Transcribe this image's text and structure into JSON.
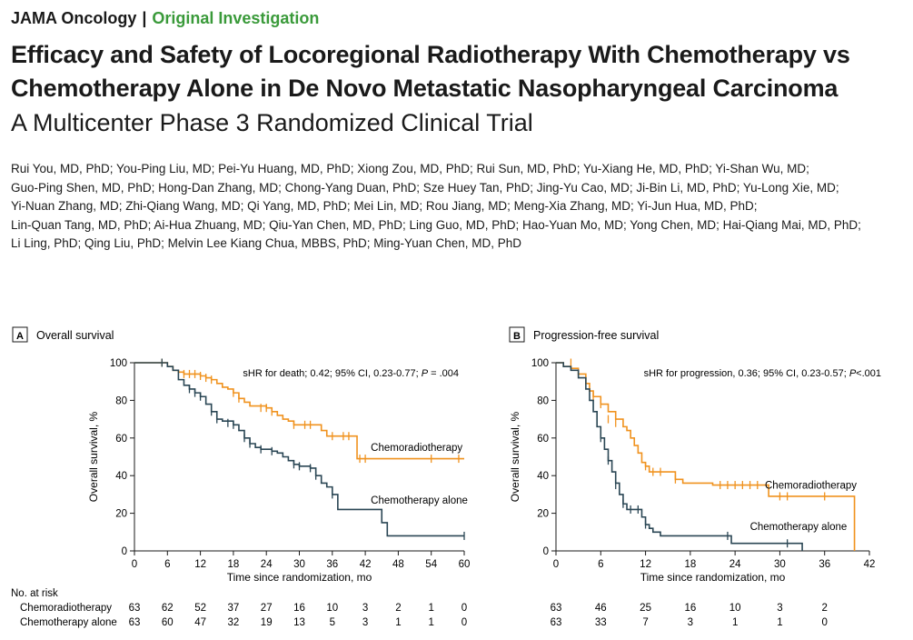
{
  "header": {
    "journal": "JAMA Oncology",
    "separator": "|",
    "category": "Original Investigation"
  },
  "title": {
    "line1": "Efficacy and Safety of Locoregional Radiotherapy With Chemotherapy vs",
    "line2": "Chemotherapy Alone in De Novo Metastatic Nasopharyngeal Carcinoma",
    "subtitle": "A Multicenter Phase 3 Randomized Clinical Trial"
  },
  "authors": [
    "Rui You, MD, PhD; You-Ping Liu, MD; Pei-Yu Huang, MD, PhD; Xiong Zou, MD, PhD; Rui Sun, MD, PhD; Yu-Xiang He, MD, PhD; Yi-Shan Wu, MD;",
    "Guo-Ping Shen, MD, PhD; Hong-Dan Zhang, MD; Chong-Yang Duan, PhD; Sze Huey Tan, PhD; Jing-Yu Cao, MD; Ji-Bin Li, MD, PhD; Yu-Long Xie, MD;",
    "Yi-Nuan Zhang, MD; Zhi-Qiang Wang, MD; Qi Yang, MD, PhD; Mei Lin, MD; Rou Jiang, MD; Meng-Xia Zhang, MD; Yi-Jun Hua, MD, PhD;",
    "Lin-Quan Tang, MD, PhD; Ai-Hua Zhuang, MD; Qiu-Yan Chen, MD, PhD; Ling Guo, MD, PhD; Hao-Yuan Mo, MD; Yong Chen, MD; Hai-Qiang Mai, MD, PhD;",
    "Li Ling, PhD; Qing Liu, PhD; Melvin Lee Kiang Chua, MBBS, PhD; Ming-Yuan Chen, MD, PhD"
  ],
  "colors": {
    "chemoradiotherapy": "#f0921e",
    "chemotherapy": "#2a4654",
    "category": "#3a9a3a"
  },
  "chart_data": [
    {
      "type": "line",
      "panel": "A",
      "title": "Overall survival",
      "xlabel": "Time since randomization, mo",
      "ylabel": "Overall survival, %",
      "xlim": [
        0,
        60
      ],
      "ylim": [
        0,
        100
      ],
      "xticks": [
        0,
        6,
        12,
        18,
        24,
        30,
        36,
        42,
        48,
        54,
        60
      ],
      "yticks": [
        0,
        20,
        40,
        60,
        80,
        100
      ],
      "annotation": {
        "prefix": "sHR for death; 0.42; 95% CI, 0.23-0.77; ",
        "p": "P",
        "suffix": " = .004"
      },
      "series": [
        {
          "name": "Chemoradiotherapy",
          "color": "#f0921e",
          "steps": [
            [
              0,
              100
            ],
            [
              5,
              100
            ],
            [
              6,
              98
            ],
            [
              7,
              96
            ],
            [
              8,
              95
            ],
            [
              9,
              94
            ],
            [
              12,
              93
            ],
            [
              13,
              92
            ],
            [
              14,
              91
            ],
            [
              15,
              89
            ],
            [
              16,
              87
            ],
            [
              17,
              86
            ],
            [
              18,
              84
            ],
            [
              19,
              81
            ],
            [
              20,
              79
            ],
            [
              21,
              77
            ],
            [
              24,
              76
            ],
            [
              25,
              74
            ],
            [
              26,
              72
            ],
            [
              27,
              70
            ],
            [
              28,
              69
            ],
            [
              29,
              67
            ],
            [
              33,
              67
            ],
            [
              34,
              64
            ],
            [
              35,
              61
            ],
            [
              40,
              61
            ],
            [
              40.5,
              49
            ],
            [
              58,
              49
            ],
            [
              60,
              49
            ]
          ],
          "censors": [
            [
              5,
              100
            ],
            [
              9,
              94
            ],
            [
              10,
              94
            ],
            [
              11,
              94
            ],
            [
              12,
              93
            ],
            [
              13,
              92
            ],
            [
              14,
              91
            ],
            [
              18,
              84
            ],
            [
              19,
              81
            ],
            [
              23,
              76
            ],
            [
              24,
              76
            ],
            [
              25,
              74
            ],
            [
              29,
              67
            ],
            [
              31,
              67
            ],
            [
              32,
              67
            ],
            [
              36,
              61
            ],
            [
              38,
              61
            ],
            [
              39,
              61
            ],
            [
              41,
              49
            ],
            [
              42,
              49
            ],
            [
              54,
              49
            ],
            [
              59,
              49
            ]
          ],
          "label_at": [
            43,
            55
          ]
        },
        {
          "name": "Chemotherapy alone",
          "color": "#2a4654",
          "steps": [
            [
              0,
              100
            ],
            [
              4,
              100
            ],
            [
              6,
              98
            ],
            [
              7,
              96
            ],
            [
              8,
              91
            ],
            [
              9,
              88
            ],
            [
              10,
              86
            ],
            [
              11,
              84
            ],
            [
              12,
              82
            ],
            [
              13,
              78
            ],
            [
              14,
              74
            ],
            [
              15,
              70
            ],
            [
              16,
              69
            ],
            [
              18,
              67
            ],
            [
              19,
              64
            ],
            [
              20,
              60
            ],
            [
              21,
              57
            ],
            [
              22,
              55
            ],
            [
              23,
              54
            ],
            [
              25,
              53
            ],
            [
              26,
              52
            ],
            [
              27,
              50
            ],
            [
              28,
              48
            ],
            [
              29,
              46
            ],
            [
              30,
              45
            ],
            [
              32,
              44
            ],
            [
              33,
              40
            ],
            [
              34,
              36
            ],
            [
              35,
              34
            ],
            [
              36,
              30
            ],
            [
              37,
              22
            ],
            [
              44,
              22
            ],
            [
              45,
              15
            ],
            [
              46,
              8
            ],
            [
              60,
              8
            ]
          ],
          "censors": [
            [
              5,
              100
            ],
            [
              10,
              86
            ],
            [
              11,
              84
            ],
            [
              12,
              82
            ],
            [
              14,
              74
            ],
            [
              15,
              70
            ],
            [
              17,
              68
            ],
            [
              18,
              67
            ],
            [
              20,
              60
            ],
            [
              21,
              57
            ],
            [
              23,
              54
            ],
            [
              25,
              53
            ],
            [
              29,
              46
            ],
            [
              30,
              45
            ],
            [
              32,
              44
            ],
            [
              33,
              40
            ],
            [
              36,
              30
            ],
            [
              60,
              8
            ]
          ],
          "label_at": [
            43,
            27
          ]
        }
      ],
      "at_risk": {
        "label": "No. at risk",
        "times": [
          0,
          6,
          12,
          18,
          24,
          30,
          36,
          42,
          48,
          54,
          60
        ],
        "rows": [
          {
            "name": "Chemoradiotherapy",
            "values": [
              63,
              62,
              52,
              37,
              27,
              16,
              10,
              3,
              2,
              1,
              0
            ]
          },
          {
            "name": "Chemotherapy alone",
            "values": [
              63,
              60,
              47,
              32,
              19,
              13,
              5,
              3,
              1,
              1,
              0
            ]
          }
        ]
      }
    },
    {
      "type": "line",
      "panel": "B",
      "title": "Progression-free survival",
      "xlabel": "Time since randomization, mo",
      "ylabel": "Overall survival, %",
      "xlim": [
        0,
        42
      ],
      "ylim": [
        0,
        100
      ],
      "xticks": [
        0,
        6,
        12,
        18,
        24,
        30,
        36,
        42
      ],
      "yticks": [
        0,
        20,
        40,
        60,
        80,
        100
      ],
      "annotation": {
        "prefix": "sHR for progression, 0.36; 95% CI, 0.23-0.57; ",
        "p": "P",
        "suffix": "<.001"
      },
      "series": [
        {
          "name": "Chemoradiotherapy",
          "color": "#f0921e",
          "steps": [
            [
              0,
              100
            ],
            [
              1,
              98
            ],
            [
              2,
              97
            ],
            [
              3,
              94
            ],
            [
              4,
              89
            ],
            [
              4.5,
              85
            ],
            [
              5,
              82
            ],
            [
              6,
              78
            ],
            [
              7,
              74
            ],
            [
              8,
              70
            ],
            [
              9,
              66
            ],
            [
              9.5,
              64
            ],
            [
              10,
              60
            ],
            [
              10.5,
              56
            ],
            [
              11,
              52
            ],
            [
              11.5,
              47
            ],
            [
              12,
              45
            ],
            [
              12.5,
              42
            ],
            [
              15,
              42
            ],
            [
              16,
              38
            ],
            [
              17,
              36
            ],
            [
              20,
              36
            ],
            [
              21,
              35
            ],
            [
              28,
              35
            ],
            [
              28.5,
              29
            ],
            [
              40,
              29
            ],
            [
              40,
              0
            ]
          ],
          "censors": [
            [
              2,
              100
            ],
            [
              5,
              82
            ],
            [
              6,
              78
            ],
            [
              7,
              70
            ],
            [
              8,
              68
            ],
            [
              12,
              45
            ],
            [
              13,
              42
            ],
            [
              14,
              42
            ],
            [
              16,
              38
            ],
            [
              22,
              35
            ],
            [
              23,
              35
            ],
            [
              24,
              35
            ],
            [
              25,
              35
            ],
            [
              26,
              35
            ],
            [
              27,
              35
            ],
            [
              30,
              29
            ],
            [
              31,
              29
            ],
            [
              36,
              29
            ]
          ],
          "label_at": [
            28,
            35
          ]
        },
        {
          "name": "Chemotherapy alone",
          "color": "#2a4654",
          "steps": [
            [
              0,
              100
            ],
            [
              1,
              98
            ],
            [
              2,
              96
            ],
            [
              3,
              92
            ],
            [
              4,
              86
            ],
            [
              4.5,
              80
            ],
            [
              5,
              74
            ],
            [
              5.5,
              66
            ],
            [
              6,
              60
            ],
            [
              6.5,
              54
            ],
            [
              7,
              48
            ],
            [
              7.5,
              42
            ],
            [
              8,
              36
            ],
            [
              8.5,
              30
            ],
            [
              9,
              25
            ],
            [
              9.5,
              22
            ],
            [
              11,
              22
            ],
            [
              11.5,
              18
            ],
            [
              12,
              14
            ],
            [
              12.5,
              12
            ],
            [
              13,
              10
            ],
            [
              14,
              8
            ],
            [
              23,
              8
            ],
            [
              23.5,
              4
            ],
            [
              32,
              4
            ],
            [
              33,
              0
            ]
          ],
          "censors": [
            [
              6,
              60
            ],
            [
              7,
              48
            ],
            [
              8,
              35
            ],
            [
              9,
              25
            ],
            [
              10,
              22
            ],
            [
              11,
              22
            ],
            [
              12,
              14
            ],
            [
              23,
              8
            ],
            [
              31,
              4
            ]
          ],
          "label_at": [
            26,
            13
          ]
        }
      ],
      "at_risk": {
        "times": [
          0,
          6,
          12,
          18,
          24,
          30,
          36
        ],
        "rows": [
          {
            "name": "Chemoradiotherapy",
            "values": [
              63,
              46,
              25,
              16,
              10,
              3,
              2
            ]
          },
          {
            "name": "Chemotherapy alone",
            "values": [
              63,
              33,
              7,
              3,
              1,
              1,
              0
            ]
          }
        ]
      }
    }
  ]
}
